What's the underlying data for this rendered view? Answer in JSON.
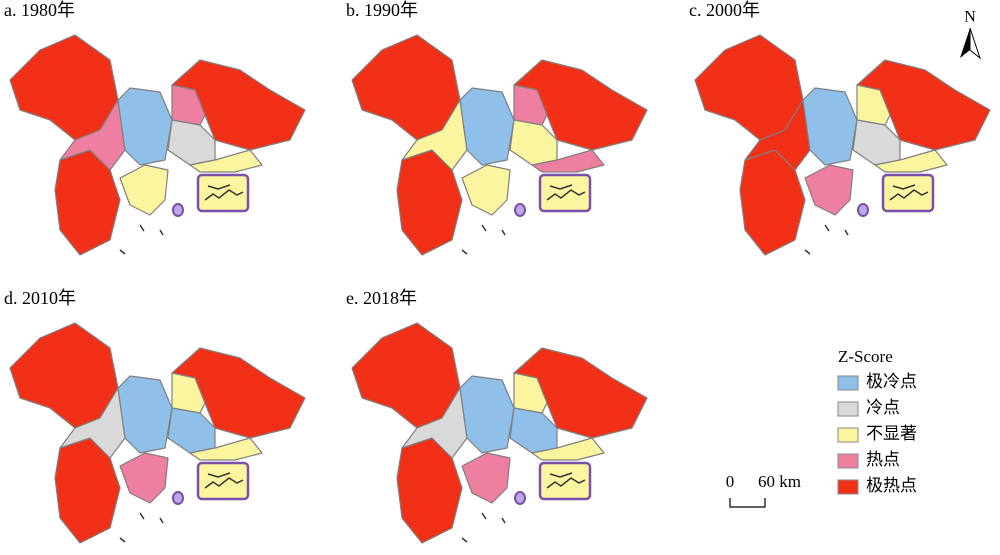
{
  "panels": [
    {
      "title": "a. 1980年"
    },
    {
      "title": "b. 1990年"
    },
    {
      "title": "c. 2000年"
    },
    {
      "title": "d. 2010年"
    },
    {
      "title": "e. 2018年"
    }
  ],
  "legend": {
    "title": "Z-Score",
    "items": [
      {
        "label": "极冷点",
        "color": "#8fc0ea"
      },
      {
        "label": "冷点",
        "color": "#d9d9d9"
      },
      {
        "label": "不显著",
        "color": "#fbf5a0"
      },
      {
        "label": "热点",
        "color": "#ef7fa0"
      },
      {
        "label": "极热点",
        "color": "#f22f17"
      }
    ]
  },
  "scale_bar": {
    "labels": [
      "0",
      "60 km"
    ]
  },
  "north_arrow": "N"
}
